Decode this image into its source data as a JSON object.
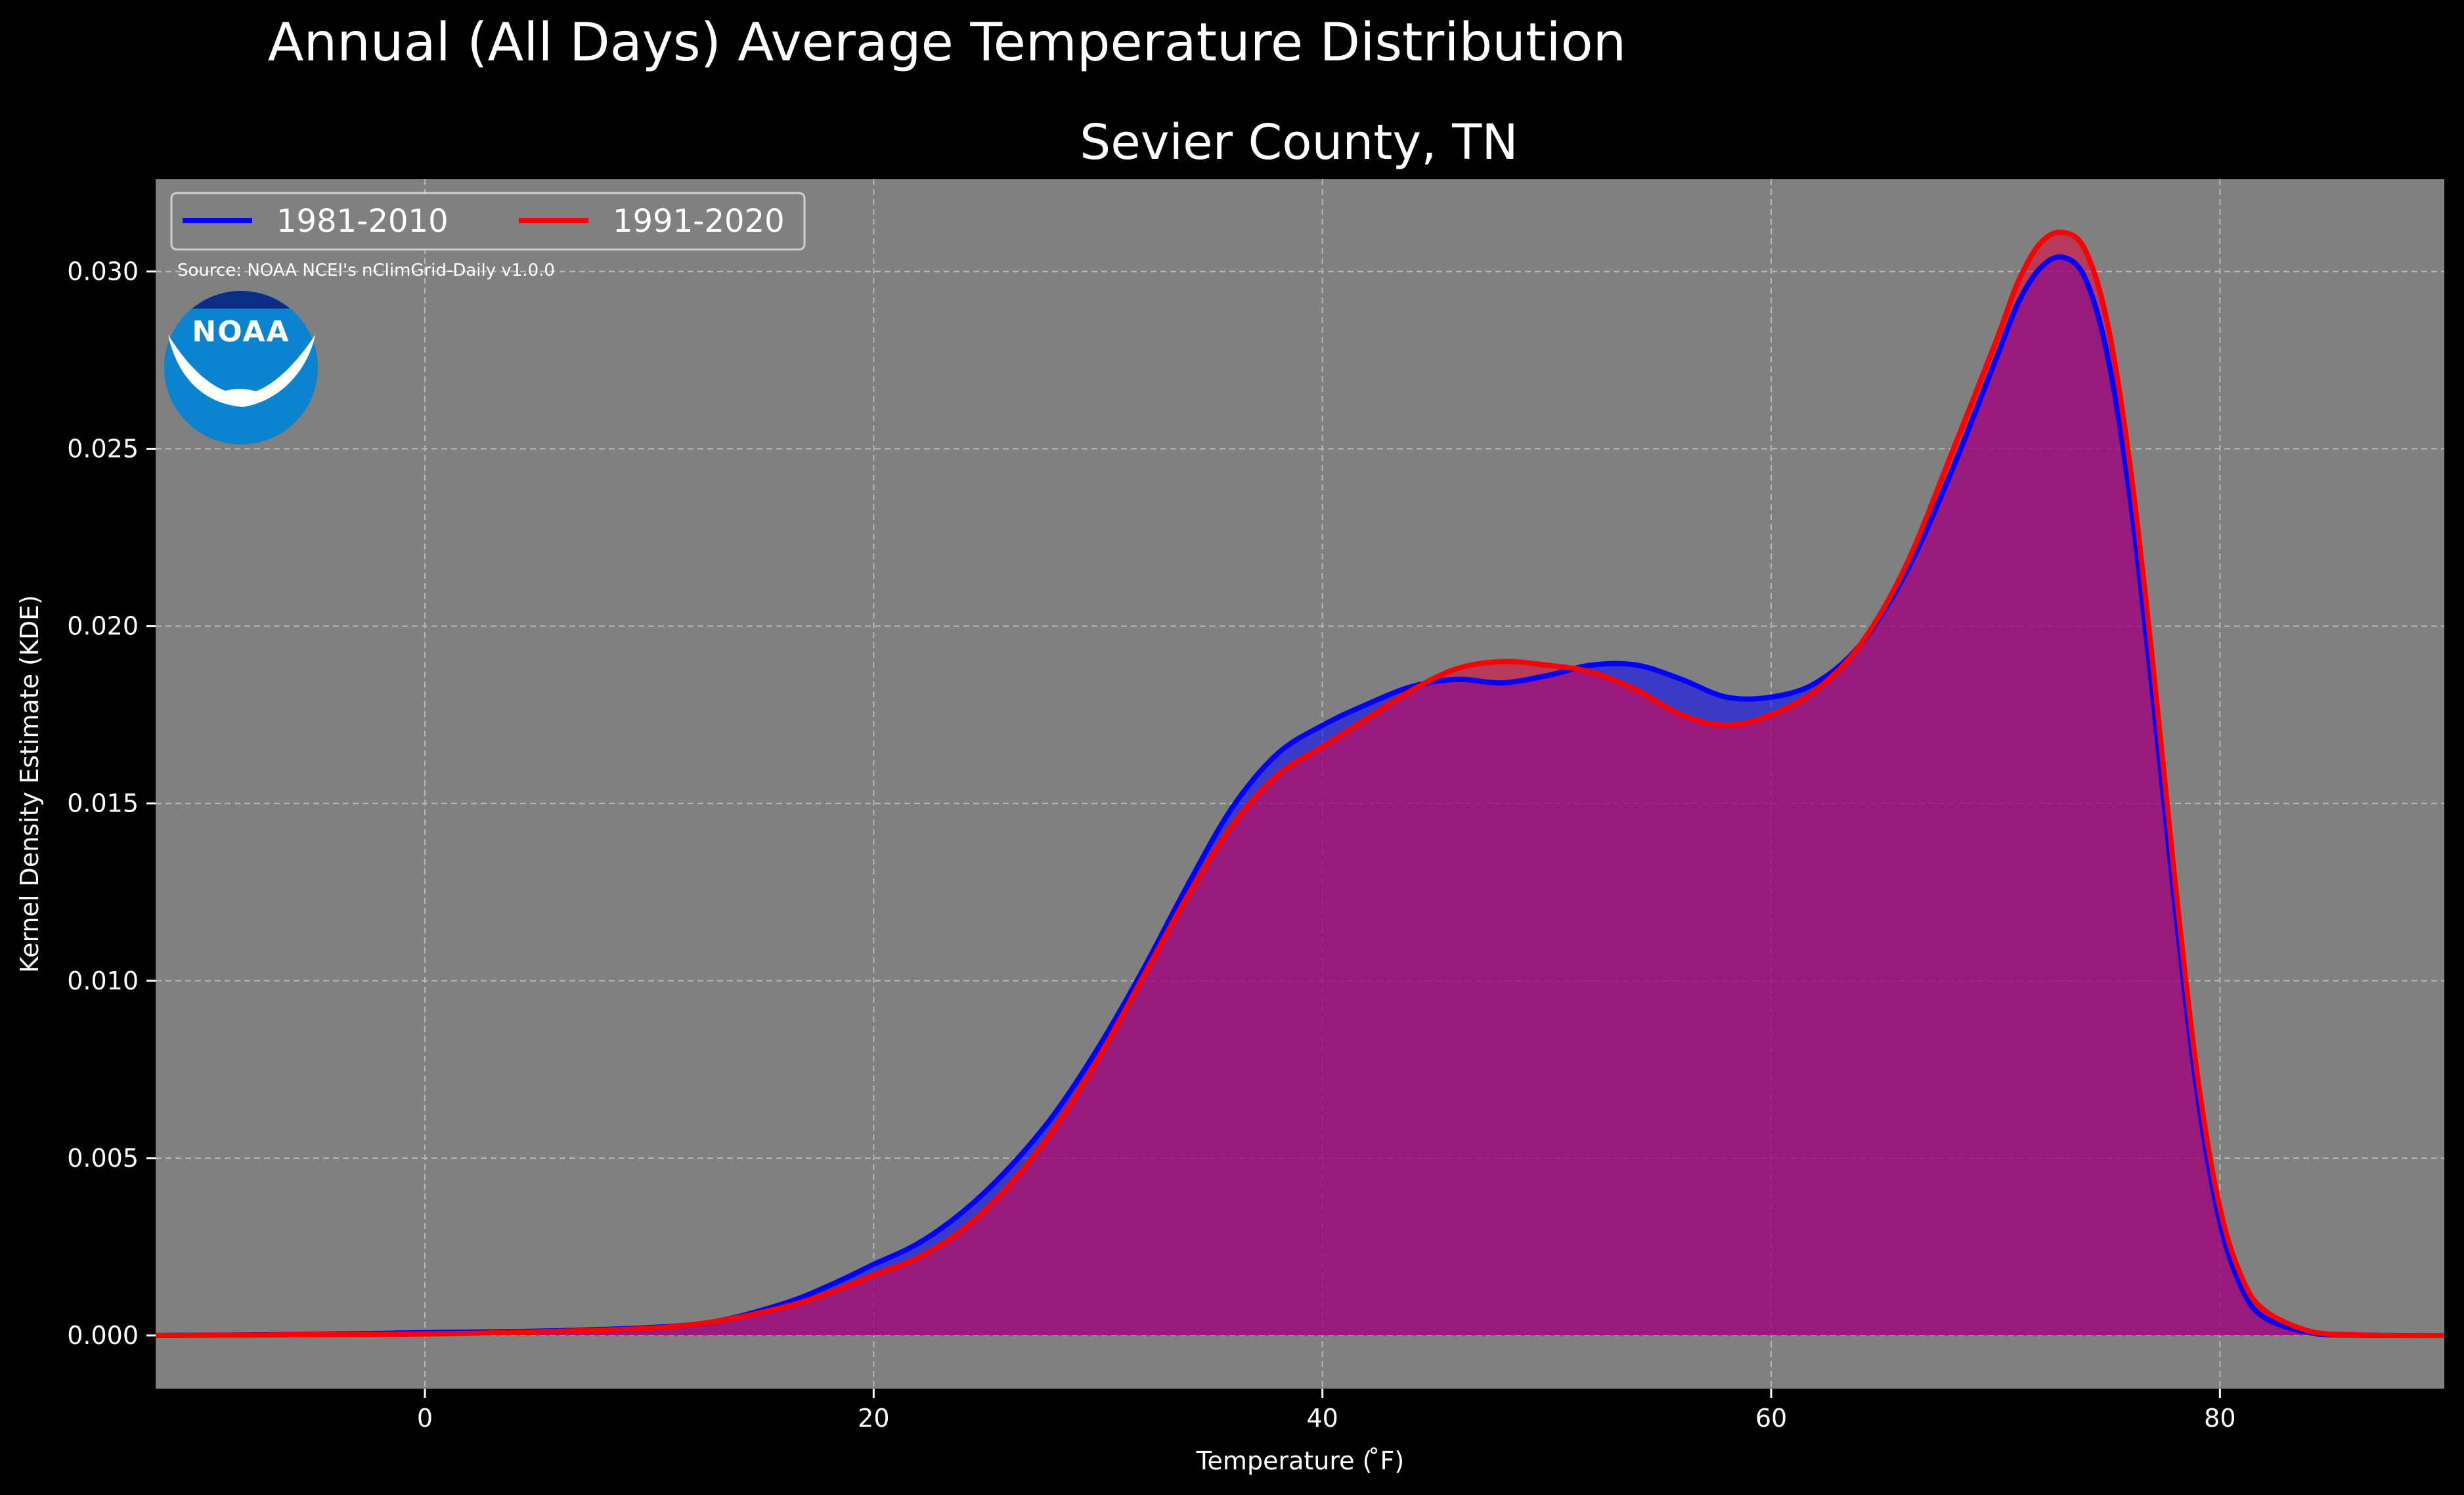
{
  "chart_data": {
    "type": "area",
    "title": "Annual (All Days) Average Temperature Distribution",
    "subtitle": "Sevier County, TN",
    "xlabel": "Temperature ($^\\circ$F)",
    "xlabel_display": "Temperature ( ̊F)",
    "ylabel": "Kernel Density Estimate (KDE)",
    "xlim": [
      -12,
      90
    ],
    "ylim": [
      -0.0015,
      0.0326
    ],
    "xticks": [
      0,
      20,
      40,
      60,
      80
    ],
    "xtick_labels": [
      "0",
      "20",
      "40",
      "60",
      "80"
    ],
    "yticks": [
      0.0,
      0.005,
      0.01,
      0.015,
      0.02,
      0.025,
      0.03
    ],
    "ytick_labels": [
      "0.000",
      "0.005",
      "0.010",
      "0.015",
      "0.020",
      "0.025",
      "0.030"
    ],
    "grid": true,
    "legend_position": "top-left",
    "source": "Source: NOAA NCEI's nClimGrid-Daily v1.0.0",
    "logo_text": "NOAA",
    "colors": {
      "background": "#000000",
      "plot_background": "#808080",
      "series_1": "#0000ff",
      "series_2": "#ff0000",
      "overlap_fill": "#9c1f5c",
      "text": "#ffffff"
    },
    "series": [
      {
        "name": "1981-2010",
        "color": "#0000ff",
        "x": [
          -12,
          -5,
          0,
          5,
          10,
          13,
          16,
          18,
          20,
          22,
          24,
          26,
          28,
          30,
          32,
          34,
          36,
          38,
          40,
          42,
          44,
          46,
          48,
          50,
          52,
          54,
          56,
          58,
          60,
          62,
          64,
          66,
          68,
          70,
          71,
          72,
          73,
          74,
          75,
          76,
          77,
          78,
          79,
          80,
          81,
          82,
          84,
          86,
          88,
          90
        ],
        "y": [
          0.0,
          3e-05,
          8e-05,
          0.00012,
          0.00022,
          0.0004,
          0.0009,
          0.0014,
          0.002,
          0.0026,
          0.0035,
          0.0047,
          0.0062,
          0.0081,
          0.0103,
          0.0127,
          0.0149,
          0.0164,
          0.0172,
          0.0178,
          0.0183,
          0.0185,
          0.0184,
          0.0186,
          0.0189,
          0.0189,
          0.0185,
          0.018,
          0.018,
          0.0184,
          0.0195,
          0.0215,
          0.0243,
          0.0275,
          0.0291,
          0.0301,
          0.0304,
          0.0298,
          0.0276,
          0.0236,
          0.0181,
          0.0121,
          0.0068,
          0.0032,
          0.0013,
          0.0005,
          8e-05,
          1e-05,
          0.0,
          0.0
        ]
      },
      {
        "name": "1991-2020",
        "color": "#ff0000",
        "x": [
          -12,
          -5,
          0,
          5,
          10,
          13,
          16,
          18,
          20,
          22,
          24,
          26,
          28,
          30,
          32,
          34,
          36,
          38,
          40,
          42,
          44,
          46,
          48,
          50,
          52,
          54,
          56,
          58,
          60,
          62,
          64,
          66,
          68,
          70,
          71,
          72,
          73,
          74,
          75,
          76,
          77,
          78,
          79,
          80,
          81,
          82,
          84,
          86,
          88,
          90
        ],
        "y": [
          0.0,
          2e-05,
          4e-05,
          0.0001,
          0.0002,
          0.0004,
          0.0008,
          0.0012,
          0.0017,
          0.0022,
          0.003,
          0.0042,
          0.0058,
          0.0078,
          0.0101,
          0.0124,
          0.0144,
          0.0158,
          0.0166,
          0.0174,
          0.0182,
          0.0188,
          0.019,
          0.0189,
          0.0187,
          0.0182,
          0.0175,
          0.0172,
          0.0175,
          0.0182,
          0.0195,
          0.0217,
          0.0248,
          0.028,
          0.0297,
          0.0308,
          0.0311,
          0.0306,
          0.0285,
          0.0245,
          0.019,
          0.0128,
          0.0073,
          0.0036,
          0.0016,
          0.0007,
          0.00012,
          2e-05,
          0.0,
          0.0
        ]
      }
    ]
  }
}
